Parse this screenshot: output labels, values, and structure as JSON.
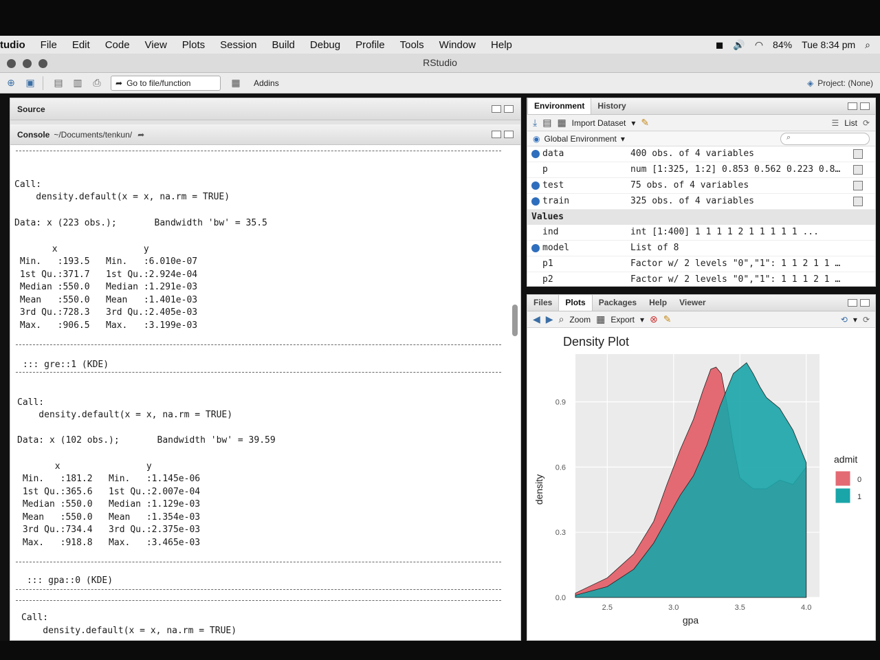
{
  "menubar": {
    "app": "tudio",
    "items": [
      "File",
      "Edit",
      "Code",
      "View",
      "Plots",
      "Session",
      "Build",
      "Debug",
      "Profile",
      "Tools",
      "Window",
      "Help"
    ],
    "battery": "84%",
    "clock": "Tue 8:34 pm"
  },
  "window": {
    "title": "RStudio"
  },
  "toolbar": {
    "goto_label": "Go to file/function",
    "addins_label": "Addins",
    "project_label": "Project: (None)"
  },
  "source": {
    "title": "Source"
  },
  "console": {
    "title": "Console",
    "path": "~/Documents/tenkun/",
    "lines": [
      "Call:",
      "    density.default(x = x, na.rm = TRUE)",
      "Data: x (223 obs.);       Bandwidth 'bw' = 35.5",
      "       x                y",
      " Min.   :193.5   Min.   :6.010e-07",
      " 1st Qu.:371.7   1st Qu.:2.924e-04",
      " Median :550.0   Median :1.291e-03",
      " Mean   :550.0   Mean   :1.401e-03",
      " 3rd Qu.:728.3   3rd Qu.:2.405e-03",
      " Max.   :906.5   Max.   :3.199e-03",
      " ::: gre::1 (KDE)",
      "Call:",
      "    density.default(x = x, na.rm = TRUE)",
      "Data: x (102 obs.);       Bandwidth 'bw' = 39.59",
      "       x                y",
      " Min.   :181.2   Min.   :1.145e-06",
      " 1st Qu.:365.6   1st Qu.:2.007e-04",
      " Median :550.0   Median :1.129e-03",
      " Mean   :550.0   Mean   :1.354e-03",
      " 3rd Qu.:734.4   3rd Qu.:2.375e-03",
      " Max.   :918.8   Max.   :3.465e-03",
      " ::: gpa::0 (KDE)",
      "Call:",
      "    density.default(x = x, na.rm = TRUE)"
    ]
  },
  "env_pane": {
    "tabs": [
      "Environment",
      "History"
    ],
    "import_label": "Import Dataset",
    "list_label": "List",
    "scope_label": "Global Environment",
    "section_values": "Values",
    "rows": [
      {
        "name": "data",
        "value": "400 obs. of 4 variables",
        "blue": true,
        "grid": true
      },
      {
        "name": "p",
        "value": "num [1:325, 1:2] 0.853 0.562 0.223 0.8…",
        "blue": false,
        "grid": true
      },
      {
        "name": "test",
        "value": "75 obs. of 4 variables",
        "blue": true,
        "grid": true
      },
      {
        "name": "train",
        "value": "325 obs. of 4 variables",
        "blue": true,
        "grid": true
      }
    ],
    "value_rows": [
      {
        "name": "ind",
        "value": "int [1:400] 1 1 1 1 2 1 1 1 1 1 ...",
        "blue": false
      },
      {
        "name": "model",
        "value": "List of 8",
        "blue": true
      },
      {
        "name": "p1",
        "value": "Factor w/ 2 levels \"0\",\"1\": 1 1 2 1 1 …",
        "blue": false
      },
      {
        "name": "p2",
        "value": "Factor w/ 2 levels \"0\",\"1\": 1 1 1 2 1 …",
        "blue": false
      }
    ]
  },
  "files_pane": {
    "tabs": [
      "Files",
      "Plots",
      "Packages",
      "Help",
      "Viewer"
    ],
    "zoom_label": "Zoom",
    "export_label": "Export"
  },
  "chart_data": {
    "type": "area",
    "title": "Density Plot",
    "xlabel": "gpa",
    "ylabel": "density",
    "xlim": [
      2.26,
      4.1
    ],
    "ylim": [
      0,
      1.12
    ],
    "xticks": [
      "2.5",
      "3.0",
      "3.5",
      "4.0"
    ],
    "yticks": [
      "0.0",
      "0.3",
      "0.6",
      "0.9"
    ],
    "legend_title": "admit",
    "legend_position": "right",
    "series": [
      {
        "name": "0",
        "color": "#e36a73",
        "x": [
          2.26,
          2.5,
          2.7,
          2.85,
          2.95,
          3.05,
          3.15,
          3.22,
          3.28,
          3.32,
          3.36,
          3.4,
          3.45,
          3.5,
          3.6,
          3.7,
          3.8,
          3.9,
          4.0
        ],
        "y": [
          0.02,
          0.09,
          0.2,
          0.35,
          0.52,
          0.68,
          0.82,
          0.95,
          1.05,
          1.06,
          1.03,
          0.9,
          0.7,
          0.55,
          0.5,
          0.5,
          0.54,
          0.52,
          0.6
        ]
      },
      {
        "name": "1",
        "color": "#1aa5a8",
        "x": [
          2.26,
          2.5,
          2.7,
          2.85,
          2.95,
          3.05,
          3.15,
          3.25,
          3.35,
          3.45,
          3.55,
          3.6,
          3.65,
          3.7,
          3.8,
          3.9,
          4.0
        ],
        "y": [
          0.01,
          0.05,
          0.13,
          0.25,
          0.36,
          0.47,
          0.56,
          0.7,
          0.88,
          1.03,
          1.08,
          1.03,
          0.97,
          0.92,
          0.87,
          0.77,
          0.62
        ]
      }
    ]
  }
}
